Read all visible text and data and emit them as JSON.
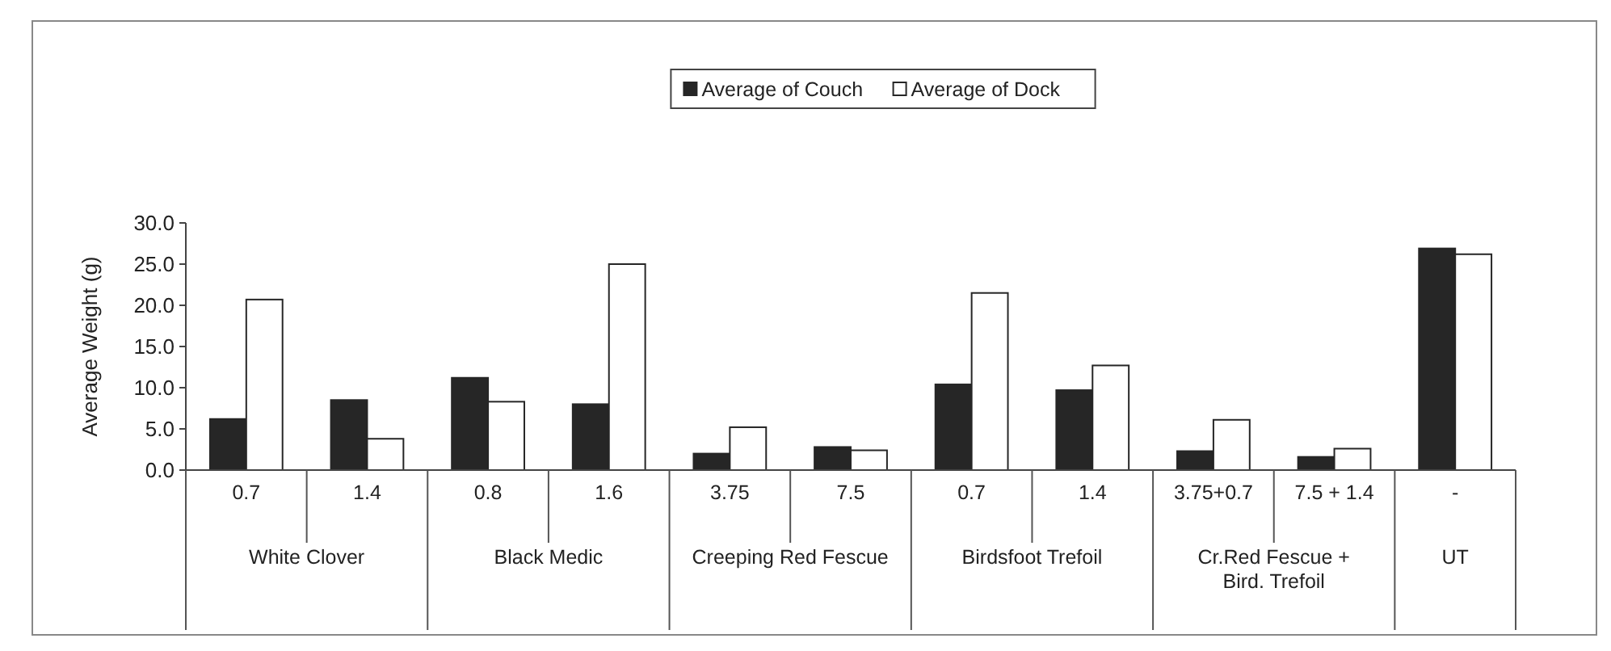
{
  "chart_data": {
    "type": "bar",
    "ylabel": "Average Weight (g)",
    "categories": [
      "0.7",
      "1.4",
      "0.8",
      "1.6",
      "3.75",
      "7.5",
      "0.7",
      "1.4",
      "3.75+0.7",
      "7.5 + 1.4",
      "-"
    ],
    "series": [
      {
        "name": "Average of Couch",
        "color": "#262626",
        "values": [
          6.2,
          8.5,
          11.2,
          8.0,
          2.0,
          2.8,
          10.4,
          9.7,
          2.3,
          1.6,
          26.9
        ]
      },
      {
        "name": "Average of Dock",
        "color": "#ffffff",
        "values": [
          20.7,
          3.8,
          8.3,
          25.0,
          5.2,
          2.4,
          21.5,
          12.7,
          6.1,
          2.6,
          26.2
        ]
      }
    ],
    "ylim": [
      0,
      30
    ],
    "yticks": [
      {
        "value": 0,
        "label": "0.0"
      },
      {
        "value": 5,
        "label": "5.0"
      },
      {
        "value": 10,
        "label": "10.0"
      },
      {
        "value": 15,
        "label": "15.0"
      },
      {
        "value": 20,
        "label": "20.0"
      },
      {
        "value": 25,
        "label": "25.0"
      },
      {
        "value": 30,
        "label": "30.0"
      }
    ],
    "grid": false,
    "legend": "top",
    "annotations": [
      "White Clover",
      "Black Medic",
      "Creeping Red Fescue",
      "Birdsfoot Trefoil",
      "Cr.Red Fescue + Bird. Trefoil",
      "UT"
    ]
  }
}
